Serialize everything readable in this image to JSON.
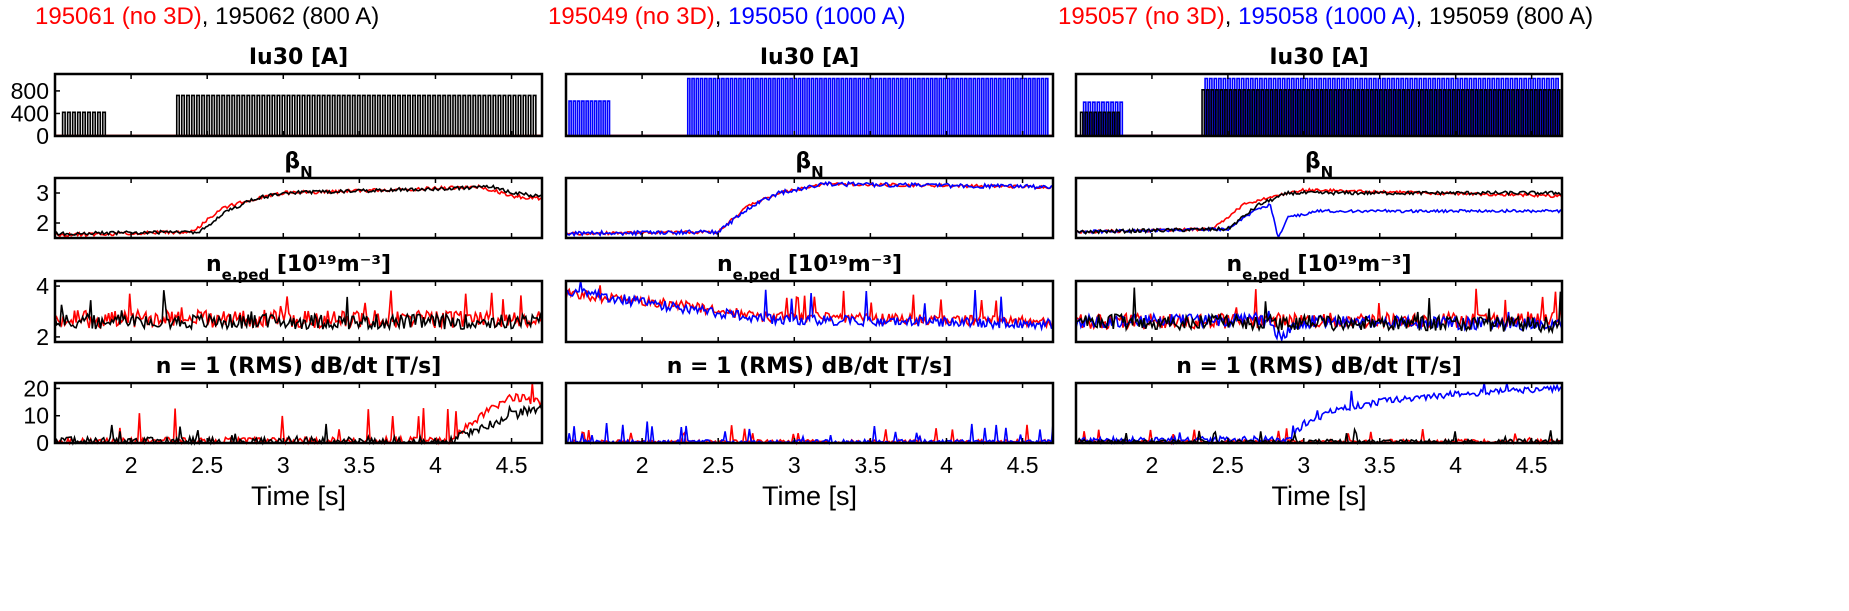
{
  "colors": {
    "red": "#ff0000",
    "black": "#000000",
    "blue": "#0000ff",
    "axis": "#000000"
  },
  "headers": [
    [
      {
        "text": "195061 (no 3D)",
        "color": "red"
      },
      {
        "text": ", 195062 (800 A)",
        "color": "black"
      }
    ],
    [
      {
        "text": "195049 (no 3D)",
        "color": "red"
      },
      {
        "text": ", ",
        "color": "black"
      },
      {
        "text": "195050 (1000 A)",
        "color": "blue"
      }
    ],
    [
      {
        "text": "195057 (no 3D)",
        "color": "red"
      },
      {
        "text": ", ",
        "color": "black"
      },
      {
        "text": "195058 (1000 A)",
        "color": "blue"
      },
      {
        "text": ", 195059 (800 A)",
        "color": "black"
      }
    ]
  ],
  "row_titles": [
    {
      "main": "Iu30 [A]"
    },
    {
      "main": "β",
      "sub": "N"
    },
    {
      "main": "n",
      "sub": "e,ped",
      "rest": " [10¹⁹m⁻³]"
    },
    {
      "main": "n = 1 (RMS) dB/dt [T/s]"
    }
  ],
  "xlabel": "Time [s]",
  "xticks": [
    "2",
    "2.5",
    "3",
    "3.5",
    "4",
    "4.5"
  ],
  "chart_data": [
    {
      "type": "line",
      "header": "195061 (no 3D), 195062 (800 A)",
      "xlim": [
        1.5,
        4.7
      ],
      "panels": [
        {
          "title": "Iu30 [A]",
          "ylim": [
            0,
            1100
          ],
          "yticks": [
            0,
            400,
            800
          ],
          "series": [
            {
              "name": "195061",
              "color": "red",
              "kind": "const",
              "value": 10
            },
            {
              "name": "195062",
              "color": "black",
              "kind": "pulse",
              "segments": [
                [
                  1.55,
                  1.85,
                  420
                ],
                [
                  2.3,
                  4.7,
                  720
                ]
              ],
              "period": 0.033,
              "low": 5
            }
          ]
        },
        {
          "title": "βN",
          "ylim": [
            1.5,
            3.5
          ],
          "yticks": [
            2,
            3
          ],
          "series": [
            {
              "name": "195061",
              "color": "red",
              "kind": "piecewise",
              "points": [
                [
                  1.5,
                  1.6
                ],
                [
                  2.4,
                  1.7
                ],
                [
                  2.6,
                  2.5
                ],
                [
                  2.8,
                  2.8
                ],
                [
                  3,
                  3.0
                ],
                [
                  4.3,
                  3.2
                ],
                [
                  4.5,
                  2.9
                ],
                [
                  4.7,
                  2.8
                ]
              ],
              "noise": 0.06,
              "seed": 11
            },
            {
              "name": "195062",
              "color": "black",
              "kind": "piecewise",
              "points": [
                [
                  1.5,
                  1.65
                ],
                [
                  2.45,
                  1.7
                ],
                [
                  2.6,
                  2.3
                ],
                [
                  2.8,
                  2.8
                ],
                [
                  3,
                  3.0
                ],
                [
                  4.4,
                  3.2
                ],
                [
                  4.5,
                  3.0
                ],
                [
                  4.7,
                  2.9
                ]
              ],
              "noise": 0.06,
              "seed": 12
            }
          ]
        },
        {
          "title": "ne,ped",
          "ylim": [
            1.8,
            4.2
          ],
          "yticks": [
            2,
            4
          ],
          "series": [
            {
              "name": "195061",
              "color": "red",
              "kind": "piecewise",
              "points": [
                [
                  1.5,
                  2.7
                ],
                [
                  4.7,
                  2.7
                ]
              ],
              "noise": 0.35,
              "seed": 21,
              "spikes": 0.04
            },
            {
              "name": "195062",
              "color": "black",
              "kind": "piecewise",
              "points": [
                [
                  1.5,
                  2.6
                ],
                [
                  4.7,
                  2.6
                ]
              ],
              "noise": 0.3,
              "seed": 22,
              "spikes": 0.03
            }
          ]
        },
        {
          "title": "n=1 dB/dt",
          "ylim": [
            0,
            22
          ],
          "yticks": [
            0,
            10,
            20
          ],
          "series": [
            {
              "name": "195061",
              "color": "red",
              "kind": "piecewise",
              "points": [
                [
                  1.5,
                  0.5
                ],
                [
                  4.1,
                  0.8
                ],
                [
                  4.3,
                  10
                ],
                [
                  4.5,
                  17
                ],
                [
                  4.7,
                  15
                ]
              ],
              "noise": 1.5,
              "seed": 31,
              "spikes": 0.05,
              "spikeAmp": 13
            },
            {
              "name": "195062",
              "color": "black",
              "kind": "piecewise",
              "points": [
                [
                  1.5,
                  0.4
                ],
                [
                  4.1,
                  0.6
                ],
                [
                  4.4,
                  8
                ],
                [
                  4.6,
                  12
                ],
                [
                  4.7,
                  12
                ]
              ],
              "noise": 1.8,
              "seed": 32,
              "spikes": 0.02,
              "spikeAmp": 6
            }
          ]
        }
      ]
    },
    {
      "type": "line",
      "header": "195049 (no 3D), 195050 (1000 A)",
      "xlim": [
        1.5,
        4.7
      ],
      "panels": [
        {
          "title": "Iu30 [A]",
          "ylim": [
            0,
            1100
          ],
          "yticks": [],
          "series": [
            {
              "name": "195049",
              "color": "red",
              "kind": "const",
              "value": 10
            },
            {
              "name": "195050",
              "color": "blue",
              "kind": "pulse",
              "segments": [
                [
                  1.52,
                  1.82,
                  620
                ],
                [
                  2.3,
                  4.7,
                  1020
                ]
              ],
              "period": 0.028,
              "low": 5
            }
          ]
        },
        {
          "title": "βN",
          "ylim": [
            1.5,
            3.5
          ],
          "yticks": [],
          "series": [
            {
              "name": "195049",
              "color": "red",
              "kind": "piecewise",
              "points": [
                [
                  1.5,
                  1.65
                ],
                [
                  2.5,
                  1.7
                ],
                [
                  2.7,
                  2.6
                ],
                [
                  2.9,
                  3.0
                ],
                [
                  3.2,
                  3.3
                ],
                [
                  4.7,
                  3.2
                ]
              ],
              "noise": 0.05,
              "seed": 41
            },
            {
              "name": "195050",
              "color": "blue",
              "kind": "piecewise",
              "points": [
                [
                  1.5,
                  1.65
                ],
                [
                  2.5,
                  1.7
                ],
                [
                  2.7,
                  2.5
                ],
                [
                  2.9,
                  3.0
                ],
                [
                  3.2,
                  3.3
                ],
                [
                  4.7,
                  3.2
                ]
              ],
              "noise": 0.07,
              "seed": 42
            }
          ]
        },
        {
          "title": "ne,ped",
          "ylim": [
            1.8,
            4.2
          ],
          "yticks": [],
          "series": [
            {
              "name": "195049",
              "color": "red",
              "kind": "piecewise",
              "points": [
                [
                  1.5,
                  3.7
                ],
                [
                  2.3,
                  3.2
                ],
                [
                  2.8,
                  2.8
                ],
                [
                  4.7,
                  2.6
                ]
              ],
              "noise": 0.2,
              "seed": 51,
              "spikes": 0.03
            },
            {
              "name": "195050",
              "color": "blue",
              "kind": "piecewise",
              "points": [
                [
                  1.5,
                  3.8
                ],
                [
                  2.3,
                  3.1
                ],
                [
                  2.8,
                  2.7
                ],
                [
                  4.7,
                  2.5
                ]
              ],
              "noise": 0.2,
              "seed": 52,
              "spikes": 0.02
            }
          ]
        },
        {
          "title": "n=1 dB/dt",
          "ylim": [
            0,
            22
          ],
          "yticks": [],
          "series": [
            {
              "name": "195049",
              "color": "red",
              "kind": "piecewise",
              "points": [
                [
                  1.5,
                  0.3
                ],
                [
                  4.7,
                  0.5
                ]
              ],
              "noise": 0.8,
              "seed": 61,
              "spikes": 0.05,
              "spikeAmp": 6
            },
            {
              "name": "195050",
              "color": "blue",
              "kind": "piecewise",
              "points": [
                [
                  1.5,
                  0.3
                ],
                [
                  4.7,
                  0.5
                ]
              ],
              "noise": 0.8,
              "seed": 62,
              "spikes": 0.06,
              "spikeAmp": 7
            }
          ]
        }
      ]
    },
    {
      "type": "line",
      "header": "195057 (no 3D), 195058 (1000 A), 195059 (800 A)",
      "xlim": [
        1.5,
        4.7
      ],
      "panels": [
        {
          "title": "Iu30 [A]",
          "ylim": [
            0,
            1100
          ],
          "yticks": [],
          "series": [
            {
              "name": "195057",
              "color": "red",
              "kind": "const",
              "value": 10
            },
            {
              "name": "195058",
              "color": "blue",
              "kind": "pulse",
              "segments": [
                [
                  1.55,
                  1.85,
                  600
                ],
                [
                  2.35,
                  4.7,
                  1020
                ]
              ],
              "period": 0.03,
              "low": 5
            },
            {
              "name": "195059",
              "color": "black",
              "kind": "pulse",
              "segments": [
                [
                  1.53,
                  1.83,
                  420
                ],
                [
                  2.33,
                  4.7,
                  820
                ]
              ],
              "period": 0.03,
              "low": 5
            }
          ]
        },
        {
          "title": "βN",
          "ylim": [
            1.5,
            3.5
          ],
          "yticks": [],
          "series": [
            {
              "name": "195057",
              "color": "red",
              "kind": "piecewise",
              "points": [
                [
                  1.5,
                  1.7
                ],
                [
                  2.4,
                  1.8
                ],
                [
                  2.6,
                  2.6
                ],
                [
                  2.8,
                  2.9
                ],
                [
                  3,
                  3.1
                ],
                [
                  4.7,
                  2.9
                ]
              ],
              "noise": 0.05,
              "seed": 71
            },
            {
              "name": "195058",
              "color": "blue",
              "kind": "piecewise",
              "points": [
                [
                  1.5,
                  1.7
                ],
                [
                  2.5,
                  1.8
                ],
                [
                  2.7,
                  2.5
                ],
                [
                  2.78,
                  2.6
                ],
                [
                  2.83,
                  1.5
                ],
                [
                  2.9,
                  2.2
                ],
                [
                  3.1,
                  2.4
                ],
                [
                  4.7,
                  2.4
                ]
              ],
              "noise": 0.05,
              "seed": 72
            },
            {
              "name": "195059",
              "color": "black",
              "kind": "piecewise",
              "points": [
                [
                  1.5,
                  1.7
                ],
                [
                  2.5,
                  1.8
                ],
                [
                  2.7,
                  2.6
                ],
                [
                  2.9,
                  3.0
                ],
                [
                  4.7,
                  3.0
                ]
              ],
              "noise": 0.06,
              "seed": 73
            }
          ]
        },
        {
          "title": "ne,ped",
          "ylim": [
            1.8,
            4.2
          ],
          "yticks": [],
          "series": [
            {
              "name": "195057",
              "color": "red",
              "kind": "piecewise",
              "points": [
                [
                  1.5,
                  2.6
                ],
                [
                  4.7,
                  2.7
                ]
              ],
              "noise": 0.3,
              "seed": 81,
              "spikes": 0.03
            },
            {
              "name": "195058",
              "color": "blue",
              "kind": "piecewise",
              "points": [
                [
                  1.5,
                  2.6
                ],
                [
                  2.7,
                  2.7
                ],
                [
                  2.85,
                  2.0
                ],
                [
                  3.0,
                  2.6
                ],
                [
                  4.7,
                  2.5
                ]
              ],
              "noise": 0.25,
              "seed": 82,
              "spikes": 0.01
            },
            {
              "name": "195059",
              "color": "black",
              "kind": "piecewise",
              "points": [
                [
                  1.5,
                  2.6
                ],
                [
                  4.7,
                  2.5
                ]
              ],
              "noise": 0.3,
              "seed": 83,
              "spikes": 0.03
            }
          ]
        },
        {
          "title": "n=1 dB/dt",
          "ylim": [
            0,
            22
          ],
          "yticks": [],
          "series": [
            {
              "name": "195057",
              "color": "red",
              "kind": "piecewise",
              "points": [
                [
                  1.5,
                  0.3
                ],
                [
                  4.7,
                  0.6
                ]
              ],
              "noise": 0.8,
              "seed": 91,
              "spikes": 0.03,
              "spikeAmp": 5
            },
            {
              "name": "195058",
              "color": "blue",
              "kind": "piecewise",
              "points": [
                [
                  1.5,
                  0.8
                ],
                [
                  2.9,
                  1.5
                ],
                [
                  3.0,
                  7
                ],
                [
                  3.2,
                  12
                ],
                [
                  3.6,
                  16
                ],
                [
                  4.0,
                  18
                ],
                [
                  4.7,
                  20
                ]
              ],
              "noise": 1.2,
              "seed": 92,
              "spikes": 0.02,
              "spikeAmp": 8
            },
            {
              "name": "195059",
              "color": "black",
              "kind": "piecewise",
              "points": [
                [
                  1.5,
                  0.3
                ],
                [
                  4.7,
                  0.5
                ]
              ],
              "noise": 0.9,
              "seed": 93,
              "spikes": 0.04,
              "spikeAmp": 5
            }
          ]
        }
      ]
    }
  ]
}
